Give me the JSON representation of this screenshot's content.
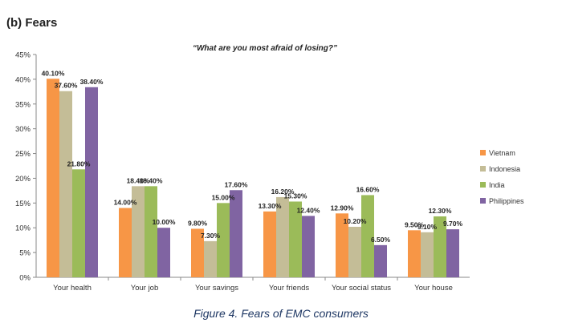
{
  "heading": "(b) Fears",
  "caption": "Figure 4. Fears of EMC consumers",
  "chart_data": {
    "type": "bar",
    "title": "“What are you most afraid of losing?”",
    "categories": [
      "Your health",
      "Your job",
      "Your savings",
      "Your friends",
      "Your social status",
      "Your house"
    ],
    "series": [
      {
        "name": "Vietnam",
        "color": "#f79646",
        "values": [
          40.1,
          14.0,
          9.8,
          13.3,
          12.9,
          9.5
        ],
        "labels": [
          "40.10%",
          "14.00%",
          "9.80%",
          "13.30%",
          "12.90%",
          "9.50%"
        ]
      },
      {
        "name": "Indonesia",
        "color": "#c4bd97",
        "values": [
          37.6,
          18.4,
          7.3,
          16.2,
          10.2,
          9.1
        ],
        "labels": [
          "37.60%",
          "18.40%",
          "7.30%",
          "16.20%",
          "10.20%",
          "9.10%"
        ]
      },
      {
        "name": "India",
        "color": "#9bbb59",
        "values": [
          21.8,
          18.4,
          15.0,
          15.3,
          16.6,
          12.3
        ],
        "labels": [
          "21.80%",
          "18.40%",
          "15.00%",
          "15.30%",
          "16.60%",
          "12.30%"
        ]
      },
      {
        "name": "Philippines",
        "color": "#8064a2",
        "values": [
          38.4,
          10.0,
          17.6,
          12.4,
          6.5,
          9.7
        ],
        "labels": [
          "38.40%",
          "10.00%",
          "17.60%",
          "12.40%",
          "6.50%",
          "9.70%"
        ]
      }
    ],
    "yticks": [
      "0%",
      "5%",
      "10%",
      "15%",
      "20%",
      "25%",
      "30%",
      "35%",
      "40%",
      "45%"
    ],
    "ylim": [
      0,
      45
    ],
    "legend": "right",
    "grid": false
  }
}
